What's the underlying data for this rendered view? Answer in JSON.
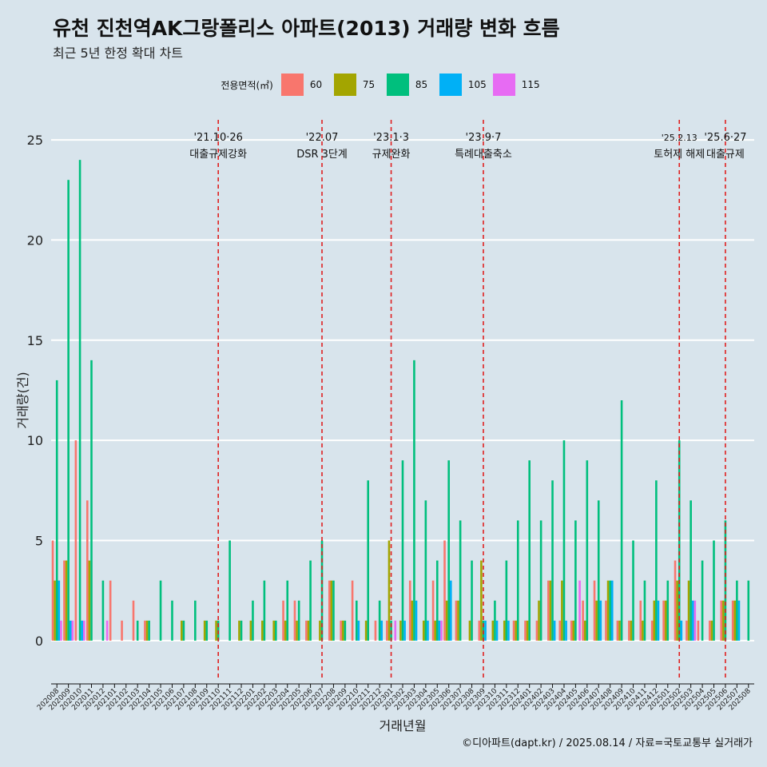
{
  "title": "유천 진천역AK그랑폴리스 아파트(2013) 거래량 변화 흐름",
  "subtitle": "최근 5년 한정 확대 차트",
  "caption": "©디아파트(dapt.kr) / 2025.08.14 / 자료=국토교통부 실거래가",
  "legend": {
    "title": "전용면적(㎡)",
    "items": [
      {
        "label": "60",
        "color": "#f8766d"
      },
      {
        "label": "75",
        "color": "#a3a500"
      },
      {
        "label": "85",
        "color": "#00bf7d"
      },
      {
        "label": "105",
        "color": "#00b0f6"
      },
      {
        "label": "115",
        "color": "#e76bf3"
      }
    ]
  },
  "chart_data": {
    "type": "bar",
    "xlabel": "거래년월",
    "ylabel": "거래량(건)",
    "ylim": [
      -2,
      26
    ],
    "yticks": [
      0,
      5,
      10,
      15,
      20,
      25
    ],
    "grid": true,
    "legend_position": "top",
    "categories": [
      "202008",
      "202009",
      "202010",
      "202011",
      "202012",
      "202101",
      "202102",
      "202103",
      "202104",
      "202105",
      "202106",
      "202107",
      "202108",
      "202109",
      "202110",
      "202111",
      "202112",
      "202201",
      "202202",
      "202203",
      "202204",
      "202205",
      "202206",
      "202207",
      "202208",
      "202209",
      "202210",
      "202211",
      "202212",
      "202301",
      "202302",
      "202303",
      "202304",
      "202305",
      "202306",
      "202307",
      "202308",
      "202309",
      "202310",
      "202311",
      "202312",
      "202401",
      "202402",
      "202403",
      "202404",
      "202405",
      "202406",
      "202407",
      "202408",
      "202409",
      "202410",
      "202411",
      "202412",
      "202501",
      "202502",
      "202503",
      "202504",
      "202505",
      "202506",
      "202507",
      "202508"
    ],
    "series": [
      {
        "name": "60",
        "color": "#f8766d",
        "points": [
          [
            "202008",
            5
          ],
          [
            "202009",
            4
          ],
          [
            "202010",
            10
          ],
          [
            "202011",
            7
          ],
          [
            "202101",
            3
          ],
          [
            "202102",
            1
          ],
          [
            "202103",
            2
          ],
          [
            "202104",
            1
          ],
          [
            "202204",
            2
          ],
          [
            "202205",
            2
          ],
          [
            "202206",
            1
          ],
          [
            "202208",
            3
          ],
          [
            "202209",
            1
          ],
          [
            "202210",
            3
          ],
          [
            "202212",
            1
          ],
          [
            "202301",
            1
          ],
          [
            "202303",
            3
          ],
          [
            "202305",
            3
          ],
          [
            "202306",
            5
          ],
          [
            "202307",
            2
          ],
          [
            "202309",
            1
          ],
          [
            "202312",
            1
          ],
          [
            "202401",
            1
          ],
          [
            "202402",
            1
          ],
          [
            "202403",
            3
          ],
          [
            "202404",
            1
          ],
          [
            "202405",
            1
          ],
          [
            "202406",
            2
          ],
          [
            "202407",
            3
          ],
          [
            "202408",
            2
          ],
          [
            "202409",
            1
          ],
          [
            "202410",
            1
          ],
          [
            "202411",
            2
          ],
          [
            "202412",
            1
          ],
          [
            "202501",
            2
          ],
          [
            "202502",
            4
          ],
          [
            "202503",
            1
          ],
          [
            "202504",
            1
          ],
          [
            "202505",
            1
          ],
          [
            "202506",
            2
          ],
          [
            "202507",
            2
          ]
        ]
      },
      {
        "name": "75",
        "color": "#a3a500",
        "points": [
          [
            "202008",
            3
          ],
          [
            "202009",
            4
          ],
          [
            "202011",
            4
          ],
          [
            "202104",
            1
          ],
          [
            "202107",
            1
          ],
          [
            "202109",
            1
          ],
          [
            "202110",
            1
          ],
          [
            "202112",
            1
          ],
          [
            "202201",
            1
          ],
          [
            "202202",
            1
          ],
          [
            "202203",
            1
          ],
          [
            "202204",
            1
          ],
          [
            "202205",
            1
          ],
          [
            "202206",
            1
          ],
          [
            "202207",
            1
          ],
          [
            "202208",
            3
          ],
          [
            "202209",
            1
          ],
          [
            "202211",
            1
          ],
          [
            "202301",
            5
          ],
          [
            "202302",
            1
          ],
          [
            "202303",
            2
          ],
          [
            "202304",
            1
          ],
          [
            "202305",
            1
          ],
          [
            "202306",
            2
          ],
          [
            "202307",
            2
          ],
          [
            "202308",
            1
          ],
          [
            "202309",
            4
          ],
          [
            "202310",
            1
          ],
          [
            "202311",
            1
          ],
          [
            "202312",
            1
          ],
          [
            "202401",
            1
          ],
          [
            "202402",
            2
          ],
          [
            "202403",
            3
          ],
          [
            "202404",
            3
          ],
          [
            "202405",
            1
          ],
          [
            "202406",
            1
          ],
          [
            "202407",
            2
          ],
          [
            "202408",
            3
          ],
          [
            "202409",
            1
          ],
          [
            "202410",
            1
          ],
          [
            "202411",
            1
          ],
          [
            "202412",
            2
          ],
          [
            "202501",
            2
          ],
          [
            "202502",
            3
          ],
          [
            "202503",
            3
          ],
          [
            "202505",
            1
          ],
          [
            "202506",
            2
          ],
          [
            "202507",
            2
          ]
        ]
      },
      {
        "name": "85",
        "color": "#00bf7d",
        "points": [
          [
            "202008",
            13
          ],
          [
            "202009",
            23
          ],
          [
            "202010",
            24
          ],
          [
            "202011",
            14
          ],
          [
            "202012",
            3
          ],
          [
            "202103",
            1
          ],
          [
            "202104",
            1
          ],
          [
            "202105",
            3
          ],
          [
            "202106",
            2
          ],
          [
            "202107",
            1
          ],
          [
            "202108",
            2
          ],
          [
            "202109",
            1
          ],
          [
            "202110",
            1
          ],
          [
            "202111",
            5
          ],
          [
            "202112",
            1
          ],
          [
            "202201",
            2
          ],
          [
            "202202",
            3
          ],
          [
            "202203",
            1
          ],
          [
            "202204",
            3
          ],
          [
            "202205",
            2
          ],
          [
            "202206",
            4
          ],
          [
            "202207",
            5
          ],
          [
            "202208",
            3
          ],
          [
            "202209",
            1
          ],
          [
            "202210",
            2
          ],
          [
            "202211",
            8
          ],
          [
            "202212",
            2
          ],
          [
            "202301",
            1
          ],
          [
            "202302",
            9
          ],
          [
            "202303",
            14
          ],
          [
            "202304",
            7
          ],
          [
            "202305",
            4
          ],
          [
            "202306",
            9
          ],
          [
            "202307",
            6
          ],
          [
            "202308",
            4
          ],
          [
            "202309",
            1
          ],
          [
            "202310",
            2
          ],
          [
            "202311",
            4
          ],
          [
            "202312",
            6
          ],
          [
            "202401",
            9
          ],
          [
            "202402",
            6
          ],
          [
            "202403",
            8
          ],
          [
            "202404",
            10
          ],
          [
            "202405",
            6
          ],
          [
            "202406",
            9
          ],
          [
            "202407",
            7
          ],
          [
            "202408",
            3
          ],
          [
            "202409",
            12
          ],
          [
            "202410",
            5
          ],
          [
            "202411",
            3
          ],
          [
            "202412",
            8
          ],
          [
            "202501",
            3
          ],
          [
            "202502",
            10
          ],
          [
            "202503",
            7
          ],
          [
            "202504",
            4
          ],
          [
            "202505",
            5
          ],
          [
            "202506",
            6
          ],
          [
            "202507",
            3
          ],
          [
            "202508",
            3
          ]
        ]
      },
      {
        "name": "105",
        "color": "#00b0f6",
        "points": [
          [
            "202008",
            3
          ],
          [
            "202009",
            1
          ],
          [
            "202010",
            1
          ],
          [
            "202210",
            1
          ],
          [
            "202212",
            1
          ],
          [
            "202302",
            1
          ],
          [
            "202303",
            2
          ],
          [
            "202304",
            1
          ],
          [
            "202305",
            1
          ],
          [
            "202306",
            3
          ],
          [
            "202309",
            1
          ],
          [
            "202310",
            1
          ],
          [
            "202311",
            1
          ],
          [
            "202403",
            1
          ],
          [
            "202404",
            1
          ],
          [
            "202407",
            2
          ],
          [
            "202408",
            3
          ],
          [
            "202412",
            2
          ],
          [
            "202502",
            1
          ],
          [
            "202503",
            2
          ],
          [
            "202507",
            2
          ]
        ]
      },
      {
        "name": "115",
        "color": "#e76bf3",
        "points": [
          [
            "202008",
            1
          ],
          [
            "202009",
            1
          ],
          [
            "202010",
            1
          ],
          [
            "202012",
            1
          ],
          [
            "202301",
            1
          ],
          [
            "202305",
            1
          ],
          [
            "202405",
            3
          ],
          [
            "202503",
            2
          ]
        ]
      }
    ],
    "annotations": [
      {
        "x": "202110",
        "date": "'21.10·26",
        "label": "대출규제강화"
      },
      {
        "x": "202207",
        "date": "'22.07",
        "label": "DSR 3단계"
      },
      {
        "x": "202301",
        "date": "'23.1·3",
        "label": "규제완화"
      },
      {
        "x": "202309",
        "date": "'23.9·7",
        "label": "특례대출축소"
      },
      {
        "x": "202502",
        "date": "'25.2.13",
        "label": "토허제 해제"
      },
      {
        "x": "202506",
        "date": "'25.6·27",
        "label": "대출규제"
      }
    ]
  }
}
